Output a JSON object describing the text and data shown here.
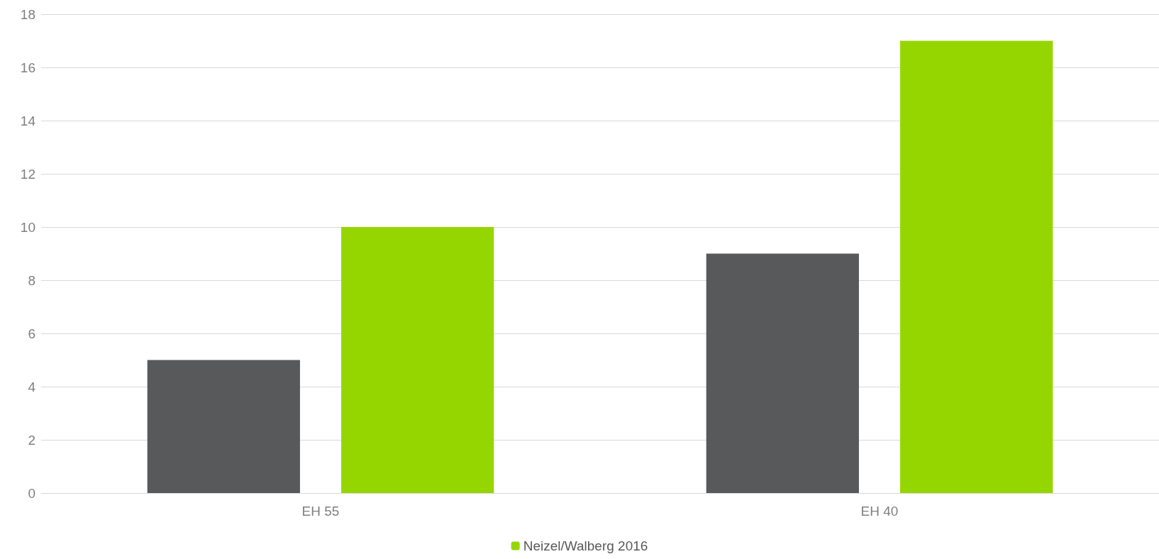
{
  "chart_data": {
    "type": "bar",
    "categories": [
      "EH 55",
      "EH 40"
    ],
    "series": [
      {
        "color": "#58595b",
        "values": [
          5,
          9
        ]
      },
      {
        "name": "Neizel/Walberg 2016",
        "color": "#95d600",
        "values": [
          10,
          17
        ]
      }
    ],
    "ylim": [
      0,
      18
    ],
    "yticks": [
      0,
      2,
      4,
      6,
      8,
      10,
      12,
      14,
      16,
      18
    ],
    "grid": "y",
    "legend": "bottom"
  }
}
